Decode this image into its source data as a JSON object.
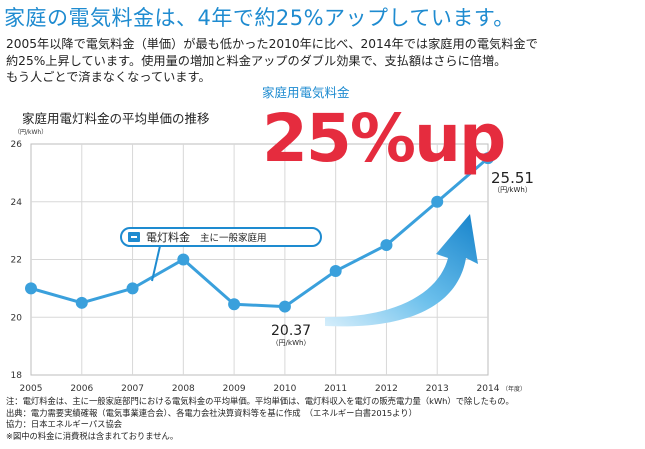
{
  "headline": "家庭の電気料金は、4年で約25%アップしています。",
  "intro": [
    "2005年以降で電気料金（単価）が最も低かった2010年に比べ、2014年では家庭用の電気料金で",
    "約25%上昇しています。使用量の増加と料金アップのダブル効果で、支払額はさらに倍増。",
    "もう人ごとで済まなくなっています。"
  ],
  "sub_label": "家庭用電気料金",
  "big_pct": "25%up",
  "chart_title": "家庭用電灯料金の平均単価の推移",
  "y_unit": "（円/kWh）",
  "x_unit": "（年度）",
  "legend": {
    "name": "電灯料金",
    "scope": "主に一般家庭用"
  },
  "annotations": {
    "min": {
      "value": "20.37",
      "unit": "（円/kWh）"
    },
    "max": {
      "value": "25.51",
      "unit": "（円/kWh）"
    }
  },
  "colors": {
    "accent": "#1e8bd0",
    "line": "#3aa0dc",
    "highlight": "#e52c3e",
    "grid": "#d8d8d8"
  },
  "chart_data": {
    "type": "line",
    "title": "家庭用電灯料金の平均単価の推移",
    "x": [
      "2005",
      "2006",
      "2007",
      "2008",
      "2009",
      "2010",
      "2011",
      "2012",
      "2013",
      "2014"
    ],
    "series": [
      {
        "name": "電灯料金",
        "values": [
          21.0,
          20.5,
          21.0,
          22.0,
          20.45,
          20.37,
          21.6,
          22.5,
          24.0,
          25.51
        ]
      }
    ],
    "ylim": [
      18,
      26
    ],
    "yticks": [
      18,
      20,
      22,
      24,
      26
    ],
    "grid": true
  },
  "footnotes": [
    "注：電灯料金は、主に一般家庭部門における電気料金の平均単価。平均単価は、電灯料収入を電灯の販売電力量（kWh）で除したもの。",
    "出典：電力需要実績確報（電気事業連合会）、各電力会社決算資料等を基に作成　（エネルギー白書2015より）",
    "協力：日本エネルギーパス協会",
    "※図中の料金に消費税は含まれておりません。"
  ]
}
